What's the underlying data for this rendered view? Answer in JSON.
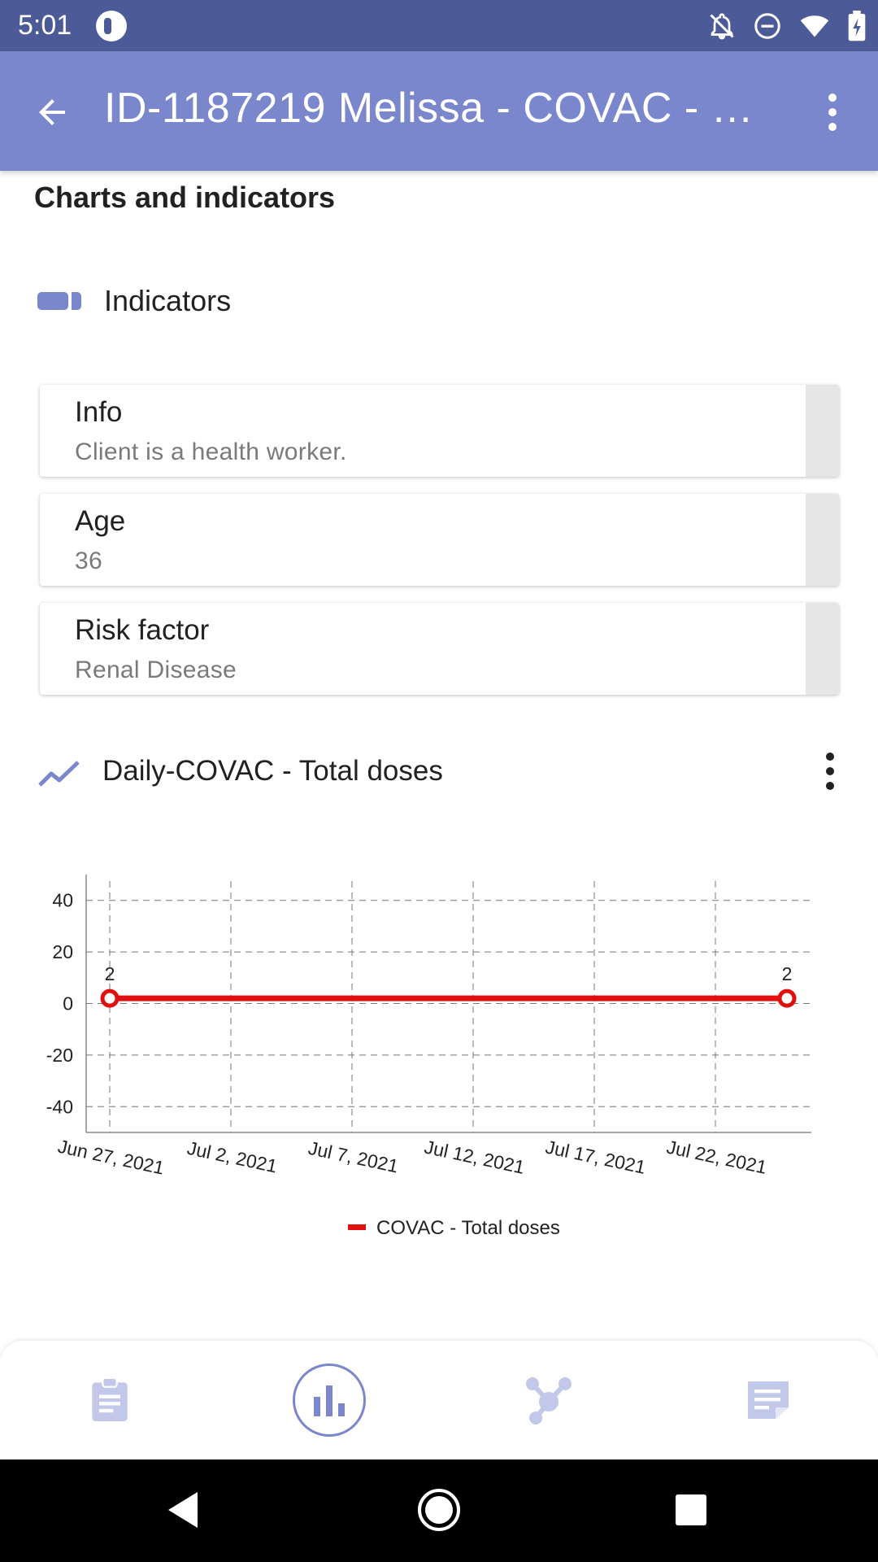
{
  "status_bar": {
    "time": "5:01"
  },
  "app_bar": {
    "title": "ID-1187219 Melissa - COVAC - C..."
  },
  "section": {
    "title": "Charts and indicators"
  },
  "indicators": {
    "label": "Indicators",
    "cards": [
      {
        "title": "Info",
        "value": "Client is a health worker."
      },
      {
        "title": "Age",
        "value": "36"
      },
      {
        "title": "Risk factor",
        "value": "Renal Disease"
      }
    ]
  },
  "chart_header": {
    "title": "Daily-COVAC - Total doses"
  },
  "colors": {
    "app_bar": "#7b87cc",
    "status_bar": "#4c5a98",
    "series": "#e0100e",
    "accent": "#7b87cc"
  },
  "chart_data": {
    "type": "line",
    "x": [
      "Jun 27, 2021",
      "Jul 26, 2021"
    ],
    "x_ticks": [
      "Jun 27, 2021",
      "Jul 2, 2021",
      "Jul 7, 2021",
      "Jul 12, 2021",
      "Jul 17, 2021",
      "Jul 22, 2021"
    ],
    "y_ticks": [
      40,
      20,
      0,
      -20,
      -40
    ],
    "ylim": [
      -50,
      50
    ],
    "series": [
      {
        "name": "COVAC - Total doses",
        "values": [
          2,
          2
        ],
        "data_labels": [
          "2",
          "2"
        ]
      }
    ],
    "grid": true,
    "legend": "bottom-center"
  },
  "bottom_nav": {
    "items": [
      {
        "icon": "clipboard-icon",
        "active": false
      },
      {
        "icon": "bar-chart-icon",
        "active": true
      },
      {
        "icon": "relationships-icon",
        "active": false
      },
      {
        "icon": "notes-icon",
        "active": false
      }
    ]
  }
}
